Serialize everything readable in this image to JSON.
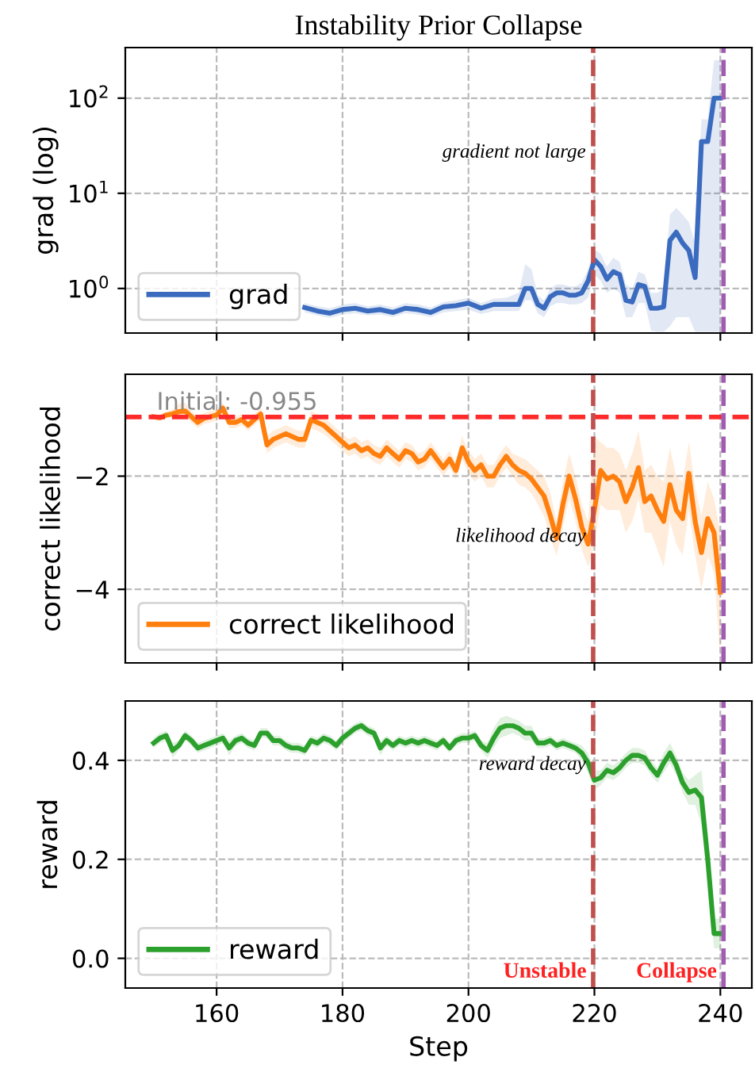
{
  "chart_data": [
    {
      "type": "line",
      "title": "Instability Prior Collapse",
      "ylabel": "grad (log)",
      "log": "y",
      "xlim": [
        145.5,
        245
      ],
      "ylim": [
        0.34,
        340
      ],
      "xticks": [
        160,
        180,
        200,
        220,
        240
      ],
      "yticks": [
        {
          "value": 1,
          "label": "10$^{0}$"
        },
        {
          "value": 10,
          "label": "10$^{1}$"
        },
        {
          "value": 100,
          "label": "10$^{2}$"
        }
      ],
      "tick_labels": "y",
      "grid": true,
      "legend": "lower left",
      "series": [
        {
          "name": "grad",
          "color": "#3a6bbf",
          "x": [
            174,
            176,
            178,
            180,
            182,
            184,
            186,
            188,
            190,
            192,
            194,
            196,
            198,
            200,
            202,
            204,
            206,
            207,
            208,
            209,
            210,
            211,
            212,
            213,
            214,
            215,
            216,
            217,
            218,
            219,
            220,
            221,
            222,
            223,
            224,
            225,
            226,
            227,
            228,
            229,
            230,
            231,
            232,
            233,
            234,
            235,
            236,
            237,
            238,
            239,
            240
          ],
          "values": [
            0.63,
            0.58,
            0.55,
            0.6,
            0.62,
            0.58,
            0.6,
            0.56,
            0.62,
            0.6,
            0.56,
            0.64,
            0.66,
            0.7,
            0.62,
            0.68,
            0.68,
            0.68,
            0.68,
            1.0,
            1.0,
            0.68,
            0.62,
            0.82,
            0.9,
            0.9,
            0.85,
            0.85,
            0.9,
            1.2,
            2.0,
            1.7,
            1.25,
            1.5,
            1.4,
            0.75,
            0.72,
            1.1,
            1.05,
            0.62,
            0.62,
            0.64,
            3.2,
            3.9,
            3.0,
            2.5,
            1.3,
            35,
            35,
            100,
            100
          ],
          "lower": [
            0.56,
            0.52,
            0.49,
            0.53,
            0.55,
            0.52,
            0.53,
            0.5,
            0.55,
            0.53,
            0.5,
            0.56,
            0.58,
            0.6,
            0.54,
            0.58,
            0.58,
            0.58,
            0.58,
            0.75,
            0.75,
            0.55,
            0.5,
            0.65,
            0.7,
            0.7,
            0.68,
            0.68,
            0.7,
            0.8,
            1.4,
            1.2,
            0.9,
            1.0,
            0.9,
            0.5,
            0.5,
            0.7,
            0.7,
            0.36,
            0.35,
            0.35,
            0.4,
            0.5,
            0.5,
            0.5,
            0.35,
            0.35,
            0.35,
            0.35,
            0.35
          ],
          "upper": [
            0.7,
            0.65,
            0.62,
            0.68,
            0.7,
            0.65,
            0.68,
            0.63,
            0.7,
            0.68,
            0.63,
            0.72,
            0.75,
            0.8,
            0.7,
            0.78,
            0.8,
            0.85,
            0.9,
            1.8,
            1.6,
            0.85,
            0.75,
            1.0,
            1.1,
            1.1,
            1.05,
            1.05,
            1.15,
            1.6,
            2.6,
            2.3,
            1.7,
            2.1,
            1.9,
            1.1,
            1.0,
            1.5,
            1.4,
            0.9,
            0.9,
            1.0,
            6,
            7,
            6,
            5,
            3,
            60,
            60,
            250,
            250
          ]
        }
      ],
      "ref_lines": [
        {
          "axis": "x",
          "value": 219.8,
          "label": null,
          "color": "#c0504d",
          "line_style": "dashed"
        },
        {
          "axis": "x",
          "value": 240.5,
          "label": null,
          "color": "#a05cb0",
          "line_style": "dashed"
        }
      ],
      "annotations": [
        "gradient not large"
      ]
    },
    {
      "type": "line",
      "ylabel": "correct likelihood",
      "xlim": [
        145.5,
        245
      ],
      "ylim": [
        -5.3,
        -0.2
      ],
      "xticks": [
        160,
        180,
        200,
        220,
        240
      ],
      "yticks": [
        {
          "value": -2,
          "label": "−2"
        },
        {
          "value": -4,
          "label": "−4"
        }
      ],
      "tick_labels": "y",
      "grid": true,
      "legend": "lower left",
      "series": [
        {
          "name": "correct likelihood",
          "color": "#ff7f0e",
          "x": [
            150,
            151,
            152,
            153,
            154,
            155,
            156,
            157,
            158,
            159,
            160,
            161,
            162,
            163,
            164,
            165,
            166,
            167,
            168,
            169,
            170,
            171,
            172,
            173,
            174,
            175,
            176,
            177,
            178,
            179,
            180,
            181,
            182,
            183,
            184,
            185,
            186,
            187,
            188,
            189,
            190,
            191,
            192,
            193,
            194,
            195,
            196,
            197,
            198,
            199,
            200,
            201,
            202,
            203,
            204,
            205,
            206,
            207,
            208,
            209,
            210,
            211,
            212,
            213,
            214,
            215,
            216,
            217,
            218,
            219,
            220,
            221,
            222,
            223,
            224,
            225,
            226,
            227,
            228,
            229,
            230,
            231,
            232,
            233,
            234,
            235,
            236,
            237,
            238,
            239,
            240
          ],
          "values": [
            -0.95,
            -0.97,
            -0.92,
            -0.9,
            -0.86,
            -0.85,
            -0.95,
            -1.05,
            -0.98,
            -0.95,
            -0.92,
            -0.8,
            -1.05,
            -1.05,
            -1.0,
            -1.1,
            -1.0,
            -0.9,
            -1.45,
            -1.35,
            -1.3,
            -1.25,
            -1.3,
            -1.35,
            -1.35,
            -1.0,
            -1.05,
            -1.1,
            -1.2,
            -1.3,
            -1.4,
            -1.5,
            -1.45,
            -1.55,
            -1.5,
            -1.6,
            -1.65,
            -1.5,
            -1.6,
            -1.7,
            -1.55,
            -1.6,
            -1.75,
            -1.7,
            -1.55,
            -1.7,
            -1.85,
            -1.7,
            -1.9,
            -1.5,
            -1.75,
            -1.9,
            -1.8,
            -2.0,
            -2.0,
            -1.8,
            -1.65,
            -1.8,
            -1.9,
            -1.95,
            -2.05,
            -2.2,
            -2.35,
            -2.7,
            -3.1,
            -2.5,
            -2.0,
            -2.4,
            -2.9,
            -3.2,
            -2.6,
            -1.9,
            -2.05,
            -2.0,
            -2.1,
            -2.45,
            -2.2,
            -1.85,
            -2.45,
            -2.35,
            -2.6,
            -2.8,
            -2.15,
            -2.6,
            -2.75,
            -1.95,
            -2.8,
            -3.35,
            -2.75,
            -3.0,
            -4.05
          ],
          "lower": [
            -1.0,
            -1.02,
            -0.98,
            -0.96,
            -0.95,
            -0.95,
            -1.05,
            -1.15,
            -1.08,
            -1.05,
            -1.02,
            -0.9,
            -1.15,
            -1.15,
            -1.1,
            -1.2,
            -1.1,
            -1.0,
            -1.6,
            -1.5,
            -1.45,
            -1.4,
            -1.45,
            -1.5,
            -1.5,
            -1.15,
            -1.2,
            -1.25,
            -1.35,
            -1.45,
            -1.55,
            -1.65,
            -1.6,
            -1.7,
            -1.65,
            -1.75,
            -1.8,
            -1.65,
            -1.75,
            -1.85,
            -1.7,
            -1.75,
            -1.9,
            -1.85,
            -1.7,
            -1.85,
            -2.0,
            -1.85,
            -2.05,
            -1.7,
            -1.95,
            -2.1,
            -2.0,
            -2.2,
            -2.2,
            -2.0,
            -1.85,
            -2.0,
            -2.15,
            -2.2,
            -2.3,
            -2.5,
            -2.7,
            -3.1,
            -3.4,
            -2.9,
            -2.4,
            -2.8,
            -3.3,
            -3.6,
            -3.2,
            -2.5,
            -2.6,
            -2.6,
            -2.6,
            -3.0,
            -2.8,
            -2.4,
            -3.0,
            -3.0,
            -3.3,
            -3.6,
            -2.8,
            -3.2,
            -3.4,
            -2.6,
            -3.4,
            -4.0,
            -3.4,
            -3.7,
            -5.2
          ],
          "upper": [
            -0.9,
            -0.92,
            -0.86,
            -0.82,
            -0.72,
            -0.7,
            -0.85,
            -0.95,
            -0.88,
            -0.85,
            -0.82,
            -0.7,
            -0.95,
            -0.95,
            -0.9,
            -1.0,
            -0.9,
            -0.8,
            -1.3,
            -1.2,
            -1.15,
            -1.1,
            -1.15,
            -1.2,
            -1.2,
            -0.85,
            -0.9,
            -0.95,
            -1.05,
            -1.15,
            -1.25,
            -1.35,
            -1.3,
            -1.4,
            -1.35,
            -1.45,
            -1.5,
            -1.35,
            -1.45,
            -1.55,
            -1.4,
            -1.45,
            -1.6,
            -1.55,
            -1.4,
            -1.55,
            -1.7,
            -1.55,
            -1.75,
            -1.3,
            -1.55,
            -1.7,
            -1.6,
            -1.8,
            -1.8,
            -1.6,
            -1.45,
            -1.6,
            -1.65,
            -1.7,
            -1.8,
            -1.9,
            -2.0,
            -2.3,
            -2.8,
            -2.1,
            -1.6,
            -2.0,
            -2.5,
            -2.8,
            -1.3,
            -1.4,
            -1.5,
            -1.5,
            -1.6,
            -1.9,
            -1.6,
            -1.2,
            -1.9,
            -1.8,
            -2.0,
            -2.1,
            -1.5,
            -2.0,
            -2.1,
            -1.4,
            -2.2,
            -2.7,
            -2.1,
            -2.4,
            -3.0
          ]
        }
      ],
      "ref_lines": [
        {
          "axis": "y",
          "value": -0.955,
          "label": "Initial: -0.955",
          "color": "#ff2a2a",
          "line_style": "dashed"
        },
        {
          "axis": "x",
          "value": 219.8,
          "label": null,
          "color": "#c0504d",
          "line_style": "dashed"
        },
        {
          "axis": "x",
          "value": 240.5,
          "label": null,
          "color": "#a05cb0",
          "line_style": "dashed"
        }
      ],
      "annotations": [
        "likelihood decay"
      ]
    },
    {
      "type": "line",
      "xlabel": "Step",
      "ylabel": "reward",
      "xlim": [
        145.5,
        245
      ],
      "ylim": [
        -0.06,
        0.52
      ],
      "xticks": [
        160,
        180,
        200,
        220,
        240
      ],
      "yticks": [
        {
          "value": 0.0,
          "label": "0.0"
        },
        0.2,
        0.4
      ],
      "grid": true,
      "legend": "lower left",
      "series": [
        {
          "name": "reward",
          "color": "#2ca02c",
          "x": [
            150,
            151,
            152,
            153,
            154,
            155,
            156,
            157,
            158,
            159,
            160,
            161,
            162,
            163,
            164,
            165,
            166,
            167,
            168,
            169,
            170,
            171,
            172,
            173,
            174,
            175,
            176,
            177,
            178,
            179,
            180,
            181,
            182,
            183,
            184,
            185,
            186,
            187,
            188,
            189,
            190,
            191,
            192,
            193,
            194,
            195,
            196,
            197,
            198,
            199,
            200,
            201,
            202,
            203,
            204,
            205,
            206,
            207,
            208,
            209,
            210,
            211,
            212,
            213,
            214,
            215,
            216,
            217,
            218,
            219,
            220,
            221,
            222,
            223,
            224,
            225,
            226,
            227,
            228,
            229,
            230,
            231,
            232,
            233,
            234,
            235,
            236,
            237,
            238,
            239,
            240
          ],
          "values": [
            0.435,
            0.445,
            0.45,
            0.42,
            0.43,
            0.45,
            0.44,
            0.425,
            0.43,
            0.435,
            0.44,
            0.445,
            0.425,
            0.44,
            0.445,
            0.435,
            0.43,
            0.455,
            0.455,
            0.44,
            0.44,
            0.43,
            0.425,
            0.425,
            0.42,
            0.44,
            0.435,
            0.445,
            0.44,
            0.43,
            0.445,
            0.455,
            0.465,
            0.47,
            0.46,
            0.455,
            0.425,
            0.44,
            0.43,
            0.44,
            0.435,
            0.44,
            0.435,
            0.44,
            0.435,
            0.43,
            0.44,
            0.425,
            0.44,
            0.445,
            0.445,
            0.45,
            0.43,
            0.42,
            0.445,
            0.465,
            0.47,
            0.47,
            0.465,
            0.455,
            0.455,
            0.435,
            0.435,
            0.44,
            0.43,
            0.435,
            0.43,
            0.425,
            0.415,
            0.395,
            0.36,
            0.365,
            0.38,
            0.375,
            0.385,
            0.4,
            0.41,
            0.41,
            0.405,
            0.385,
            0.37,
            0.395,
            0.415,
            0.39,
            0.355,
            0.335,
            0.34,
            0.325,
            0.2,
            0.05,
            0.05
          ],
          "lower": [
            0.425,
            0.435,
            0.44,
            0.405,
            0.42,
            0.44,
            0.43,
            0.415,
            0.42,
            0.425,
            0.43,
            0.435,
            0.41,
            0.43,
            0.435,
            0.425,
            0.42,
            0.445,
            0.445,
            0.43,
            0.43,
            0.42,
            0.415,
            0.415,
            0.41,
            0.43,
            0.425,
            0.435,
            0.43,
            0.42,
            0.435,
            0.445,
            0.455,
            0.46,
            0.45,
            0.445,
            0.41,
            0.43,
            0.42,
            0.43,
            0.425,
            0.43,
            0.425,
            0.43,
            0.425,
            0.42,
            0.43,
            0.415,
            0.43,
            0.435,
            0.435,
            0.44,
            0.42,
            0.405,
            0.425,
            0.445,
            0.45,
            0.455,
            0.45,
            0.44,
            0.44,
            0.425,
            0.425,
            0.43,
            0.42,
            0.425,
            0.42,
            0.415,
            0.4,
            0.375,
            0.34,
            0.35,
            0.365,
            0.36,
            0.37,
            0.385,
            0.395,
            0.395,
            0.39,
            0.37,
            0.355,
            0.375,
            0.395,
            0.37,
            0.335,
            0.31,
            0.31,
            0.27,
            0.15,
            0.02,
            0.02
          ],
          "upper": [
            0.445,
            0.455,
            0.46,
            0.435,
            0.44,
            0.46,
            0.45,
            0.435,
            0.44,
            0.445,
            0.45,
            0.455,
            0.44,
            0.45,
            0.455,
            0.445,
            0.44,
            0.465,
            0.465,
            0.45,
            0.45,
            0.44,
            0.435,
            0.435,
            0.43,
            0.45,
            0.445,
            0.455,
            0.45,
            0.44,
            0.455,
            0.465,
            0.475,
            0.48,
            0.47,
            0.465,
            0.44,
            0.45,
            0.44,
            0.45,
            0.445,
            0.45,
            0.445,
            0.45,
            0.445,
            0.44,
            0.45,
            0.435,
            0.45,
            0.455,
            0.455,
            0.46,
            0.44,
            0.435,
            0.465,
            0.485,
            0.49,
            0.485,
            0.48,
            0.47,
            0.47,
            0.445,
            0.445,
            0.45,
            0.44,
            0.445,
            0.44,
            0.435,
            0.43,
            0.415,
            0.38,
            0.38,
            0.395,
            0.39,
            0.4,
            0.415,
            0.425,
            0.425,
            0.42,
            0.4,
            0.385,
            0.415,
            0.435,
            0.41,
            0.375,
            0.36,
            0.37,
            0.38,
            0.25,
            0.08,
            0.08
          ]
        }
      ],
      "ref_lines": [
        {
          "axis": "x",
          "value": 219.8,
          "label": "Unstable",
          "color": "#c0504d",
          "line_style": "dashed"
        },
        {
          "axis": "x",
          "value": 240.5,
          "label": "Collapse",
          "color": "#a05cb0",
          "line_style": "dashed"
        }
      ],
      "annotations": [
        "reward decay"
      ]
    }
  ]
}
